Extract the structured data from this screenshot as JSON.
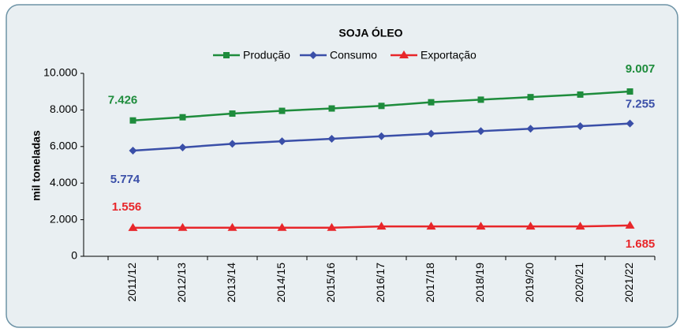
{
  "chart_data": {
    "type": "line",
    "title": "SOJA ÓLEO",
    "y_label": "mil toneladas",
    "categories": [
      "2011/12",
      "2012/13",
      "2013/14",
      "2014/15",
      "2015/16",
      "2016/17",
      "2017/18",
      "2018/19",
      "2019/20",
      "2020/21",
      "2021/22"
    ],
    "series": [
      {
        "name": "Produção",
        "color": "#1e8c3c",
        "marker": "square",
        "values": [
          7426,
          7600,
          7800,
          7950,
          8080,
          8220,
          8420,
          8560,
          8700,
          8840,
          9007
        ],
        "value_labels": [
          "7.426",
          null,
          null,
          null,
          null,
          null,
          null,
          null,
          null,
          null,
          "9.007"
        ]
      },
      {
        "name": "Consumo",
        "color": "#3a4fa8",
        "marker": "diamond",
        "values": [
          5774,
          5950,
          6150,
          6290,
          6420,
          6560,
          6700,
          6840,
          6970,
          7110,
          7255
        ],
        "value_labels": [
          "5.774",
          null,
          null,
          null,
          null,
          null,
          null,
          null,
          null,
          null,
          "7.255"
        ]
      },
      {
        "name": "Exportação",
        "color": "#e8262a",
        "marker": "triangle",
        "values": [
          1556,
          1560,
          1560,
          1560,
          1560,
          1630,
          1630,
          1630,
          1630,
          1630,
          1685
        ],
        "value_labels": [
          "1.556",
          null,
          null,
          null,
          null,
          null,
          null,
          null,
          null,
          null,
          "1.685"
        ]
      }
    ],
    "ylim": [
      0,
      10000
    ],
    "yticks": [
      0,
      {
        "value": 2000,
        "label": "2.000"
      },
      {
        "value": 4000,
        "label": "4.000"
      },
      {
        "value": 6000,
        "label": "6.000"
      },
      {
        "value": 8000,
        "label": "8.000"
      },
      {
        "value": 10000,
        "label": "10.000"
      }
    ],
    "legend": "top"
  }
}
